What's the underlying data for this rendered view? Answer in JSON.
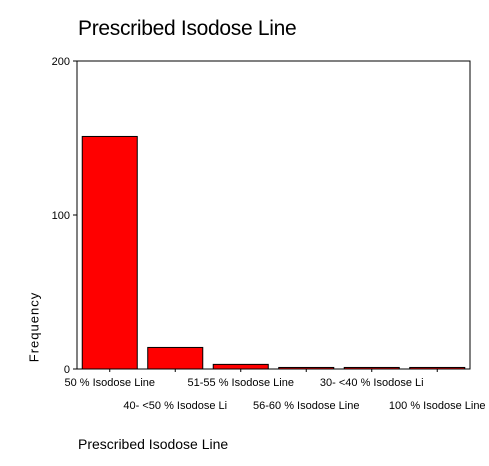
{
  "chart_data": {
    "type": "bar",
    "title": "Prescribed Isodose Line",
    "xlabel": "Prescribed Isodose Line",
    "ylabel": "Frequency",
    "categories": [
      "50 % Isodose Line",
      "40- <50 % Isodose Li",
      "51-55 % Isodose Line",
      "56-60 % Isodose Line",
      "30- <40 % Isodose Li",
      "100 % Isodose Line"
    ],
    "values": [
      151,
      14,
      3,
      1,
      1,
      1
    ],
    "ylim": [
      0,
      200
    ],
    "yticks": [
      0,
      100,
      200
    ],
    "grid": false,
    "bar_color": "#ff0000",
    "bar_edge_color": "#000000"
  }
}
